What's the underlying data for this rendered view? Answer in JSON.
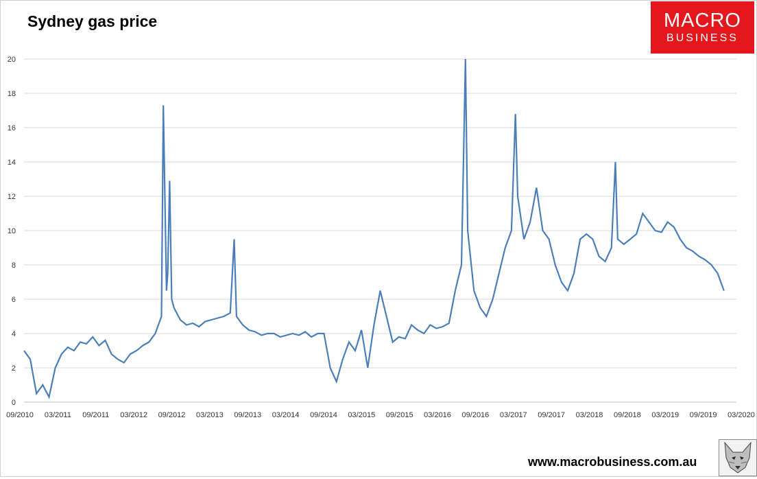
{
  "title": "Sydney gas price",
  "logo": {
    "line1": "MACRO",
    "line2": "BUSINESS",
    "color": "#e4181c"
  },
  "footer": {
    "url": "www.macrobusiness.com.au"
  },
  "wolf_icon": "wolf-logo-icon",
  "chart_data": {
    "type": "line",
    "title": "Sydney gas price",
    "xlabel": "",
    "ylabel": "",
    "ylim": [
      0,
      20
    ],
    "y_ticks": [
      "0",
      "2",
      "4",
      "6",
      "8",
      "10",
      "12",
      "14",
      "16",
      "18",
      "20"
    ],
    "x_ticks": [
      "09/2010",
      "03/2011",
      "09/2011",
      "03/2012",
      "09/2012",
      "03/2013",
      "09/2013",
      "03/2014",
      "09/2014",
      "03/2015",
      "09/2015",
      "03/2016",
      "09/2016",
      "03/2017",
      "09/2017",
      "03/2018",
      "09/2018",
      "03/2019",
      "09/2019",
      "03/2020"
    ],
    "xlim": [
      "2010-09",
      "2020-03"
    ],
    "grid": "horizontal",
    "line_color": "#4a7ebb",
    "series": [
      {
        "values": [
          [
            "2010-09",
            3.0
          ],
          [
            "2010-10",
            2.5
          ],
          [
            "2010-11",
            0.5
          ],
          [
            "2010-12",
            1.0
          ],
          [
            "2011-01",
            0.3
          ],
          [
            "2011-02",
            2.0
          ],
          [
            "2011-03",
            2.8
          ],
          [
            "2011-04",
            3.2
          ],
          [
            "2011-05",
            3.0
          ],
          [
            "2011-06",
            3.5
          ],
          [
            "2011-07",
            3.4
          ],
          [
            "2011-08",
            3.8
          ],
          [
            "2011-09",
            3.3
          ],
          [
            "2011-10",
            3.6
          ],
          [
            "2011-11",
            2.8
          ],
          [
            "2011-12",
            2.5
          ],
          [
            "2012-01",
            2.3
          ],
          [
            "2012-02",
            2.8
          ],
          [
            "2012-03",
            3.0
          ],
          [
            "2012-04",
            3.3
          ],
          [
            "2012-05",
            3.5
          ],
          [
            "2012-06",
            4.0
          ],
          [
            "2012-07",
            5.0
          ],
          [
            "2012-07-10",
            17.3
          ],
          [
            "2012-07-25",
            6.5
          ],
          [
            "2012-08",
            7.5
          ],
          [
            "2012-08-10",
            12.9
          ],
          [
            "2012-08-20",
            6.0
          ],
          [
            "2012-09",
            5.5
          ],
          [
            "2012-10",
            4.8
          ],
          [
            "2012-11",
            4.5
          ],
          [
            "2012-12",
            4.6
          ],
          [
            "2013-01",
            4.4
          ],
          [
            "2013-02",
            4.7
          ],
          [
            "2013-03",
            4.8
          ],
          [
            "2013-04",
            4.9
          ],
          [
            "2013-05",
            5.0
          ],
          [
            "2013-06",
            5.2
          ],
          [
            "2013-06-20",
            9.5
          ],
          [
            "2013-07",
            5.0
          ],
          [
            "2013-08",
            4.5
          ],
          [
            "2013-09",
            4.2
          ],
          [
            "2013-10",
            4.1
          ],
          [
            "2013-11",
            3.9
          ],
          [
            "2013-12",
            4.0
          ],
          [
            "2014-01",
            4.0
          ],
          [
            "2014-02",
            3.8
          ],
          [
            "2014-03",
            3.9
          ],
          [
            "2014-04",
            4.0
          ],
          [
            "2014-05",
            3.9
          ],
          [
            "2014-06",
            4.1
          ],
          [
            "2014-07",
            3.8
          ],
          [
            "2014-08",
            4.0
          ],
          [
            "2014-09",
            4.0
          ],
          [
            "2014-10",
            2.0
          ],
          [
            "2014-11",
            1.2
          ],
          [
            "2014-12",
            2.5
          ],
          [
            "2015-01",
            3.5
          ],
          [
            "2015-02",
            3.0
          ],
          [
            "2015-03",
            4.2
          ],
          [
            "2015-04",
            2.0
          ],
          [
            "2015-05",
            4.5
          ],
          [
            "2015-06",
            6.5
          ],
          [
            "2015-07",
            5.0
          ],
          [
            "2015-08",
            3.5
          ],
          [
            "2015-09",
            3.8
          ],
          [
            "2015-10",
            3.7
          ],
          [
            "2015-11",
            4.5
          ],
          [
            "2015-12",
            4.2
          ],
          [
            "2016-01",
            4.0
          ],
          [
            "2016-02",
            4.5
          ],
          [
            "2016-03",
            4.3
          ],
          [
            "2016-04",
            4.4
          ],
          [
            "2016-05",
            4.6
          ],
          [
            "2016-06",
            6.5
          ],
          [
            "2016-07",
            8.0
          ],
          [
            "2016-07-20",
            20.0
          ],
          [
            "2016-08",
            10.0
          ],
          [
            "2016-09",
            6.5
          ],
          [
            "2016-10",
            5.5
          ],
          [
            "2016-11",
            5.0
          ],
          [
            "2016-12",
            6.0
          ],
          [
            "2017-01",
            7.5
          ],
          [
            "2017-02",
            9.0
          ],
          [
            "2017-03",
            10.0
          ],
          [
            "2017-03-20",
            16.8
          ],
          [
            "2017-04",
            12.0
          ],
          [
            "2017-05",
            9.5
          ],
          [
            "2017-06",
            10.5
          ],
          [
            "2017-07",
            12.5
          ],
          [
            "2017-08",
            10.0
          ],
          [
            "2017-09",
            9.5
          ],
          [
            "2017-10",
            8.0
          ],
          [
            "2017-11",
            7.0
          ],
          [
            "2017-12",
            6.5
          ],
          [
            "2018-01",
            7.5
          ],
          [
            "2018-02",
            9.5
          ],
          [
            "2018-03",
            9.8
          ],
          [
            "2018-04",
            9.5
          ],
          [
            "2018-05",
            8.5
          ],
          [
            "2018-06",
            8.2
          ],
          [
            "2018-07",
            9.0
          ],
          [
            "2018-07-20",
            14.0
          ],
          [
            "2018-08",
            9.5
          ],
          [
            "2018-09",
            9.2
          ],
          [
            "2018-10",
            9.5
          ],
          [
            "2018-11",
            9.8
          ],
          [
            "2018-12",
            11.0
          ],
          [
            "2019-01",
            10.5
          ],
          [
            "2019-02",
            10.0
          ],
          [
            "2019-03",
            9.9
          ],
          [
            "2019-04",
            10.5
          ],
          [
            "2019-05",
            10.2
          ],
          [
            "2019-06",
            9.5
          ],
          [
            "2019-07",
            9.0
          ],
          [
            "2019-08",
            8.8
          ],
          [
            "2019-09",
            8.5
          ],
          [
            "2019-10",
            8.3
          ],
          [
            "2019-11",
            8.0
          ],
          [
            "2019-12",
            7.5
          ],
          [
            "2020-01",
            6.5
          ]
        ]
      }
    ]
  }
}
